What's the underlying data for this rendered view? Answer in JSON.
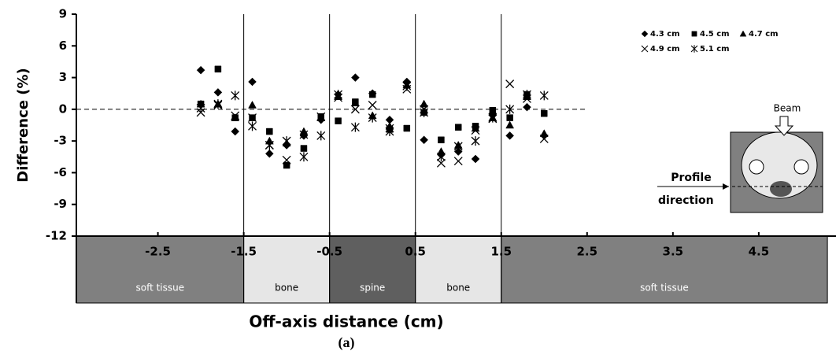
{
  "chart_data": {
    "type": "scatter",
    "ylabel": "Difference (%)",
    "xlabel": "Off-axis distance (cm)",
    "caption": "(a)",
    "xlim": [
      -3.45,
      5.4
    ],
    "ylim": [
      -12,
      9
    ],
    "xticks": [
      -2.5,
      -1.5,
      -0.5,
      0.5,
      1.5,
      2.5,
      3.5,
      4.5
    ],
    "yticks": [
      9,
      6,
      3,
      0,
      -3,
      -6,
      -9,
      -12
    ],
    "reference_line": {
      "y": 0,
      "x": [
        -3.45,
        2.5
      ]
    },
    "regions": [
      {
        "label": "soft tissue",
        "from": -3.45,
        "to": -1.5,
        "color": "#808080"
      },
      {
        "label": "bone",
        "from": -1.5,
        "to": -0.5,
        "color": "#e6e6e6"
      },
      {
        "label": "spine",
        "from": -0.5,
        "to": 0.5,
        "color": "#5f5f5f"
      },
      {
        "label": "bone",
        "from": 0.5,
        "to": 1.5,
        "color": "#e6e6e6"
      },
      {
        "label": "soft tissue",
        "from": 1.5,
        "to": 5.3,
        "color": "#808080"
      }
    ],
    "boundaries": [
      -1.5,
      -0.5,
      0.5,
      1.5
    ],
    "x": [
      -2.0,
      -1.8,
      -1.6,
      -1.4,
      -1.2,
      -1.0,
      -0.8,
      -0.6,
      -0.4,
      -0.2,
      0.0,
      0.2,
      0.4,
      0.6,
      0.8,
      1.0,
      1.2,
      1.4,
      1.6,
      1.8,
      2.0
    ],
    "series": [
      {
        "name": "4.3 cm",
        "marker": "diamond",
        "color": "#000000",
        "values": [
          3.7,
          1.6,
          -2.1,
          2.6,
          -4.2,
          -3.4,
          -2.5,
          -1.0,
          1.4,
          3.0,
          1.5,
          -1.0,
          2.6,
          -2.9,
          -4.3,
          -4.0,
          -4.7,
          -0.4,
          -2.5,
          0.2,
          -2.5
        ]
      },
      {
        "name": "4.5 cm",
        "marker": "square",
        "color": "#000000",
        "values": [
          0.5,
          3.8,
          -0.8,
          -0.8,
          -2.1,
          -5.3,
          -3.7,
          -0.7,
          -1.1,
          0.7,
          1.4,
          -1.9,
          -1.8,
          -0.3,
          -2.9,
          -1.7,
          -1.6,
          -0.1,
          -0.8,
          1.4,
          -0.4
        ]
      },
      {
        "name": "4.7 cm",
        "marker": "triangle",
        "color": "#000000",
        "values": [
          0.5,
          0.5,
          -0.8,
          0.4,
          -3.0,
          -3.2,
          -2.1,
          -0.8,
          1.2,
          0.6,
          -0.6,
          -1.6,
          2.3,
          0.5,
          -4.0,
          -3.4,
          -1.8,
          -0.8,
          -1.5,
          1.2,
          -2.3
        ]
      },
      {
        "name": "4.9 cm",
        "marker": "x",
        "color": "#000000",
        "values": [
          -0.3,
          0.4,
          -0.6,
          -0.8,
          -3.4,
          -4.8,
          -2.4,
          -0.7,
          1.1,
          0.0,
          0.4,
          -1.8,
          1.9,
          0.0,
          -5.1,
          -4.9,
          -2.0,
          -0.9,
          2.4,
          1.0,
          -2.8
        ]
      },
      {
        "name": "5.1 cm",
        "marker": "asterisk",
        "color": "#000000",
        "values": [
          0.1,
          0.5,
          1.3,
          -1.6,
          -3.4,
          -3.0,
          -4.5,
          -2.5,
          1.4,
          -1.7,
          -0.8,
          -2.1,
          2.2,
          -0.3,
          -4.5,
          -3.5,
          -3.0,
          -0.8,
          0.0,
          1.4,
          1.3
        ]
      }
    ],
    "inset": {
      "beam": "Beam",
      "profile": "Profile",
      "direction": "direction"
    }
  }
}
